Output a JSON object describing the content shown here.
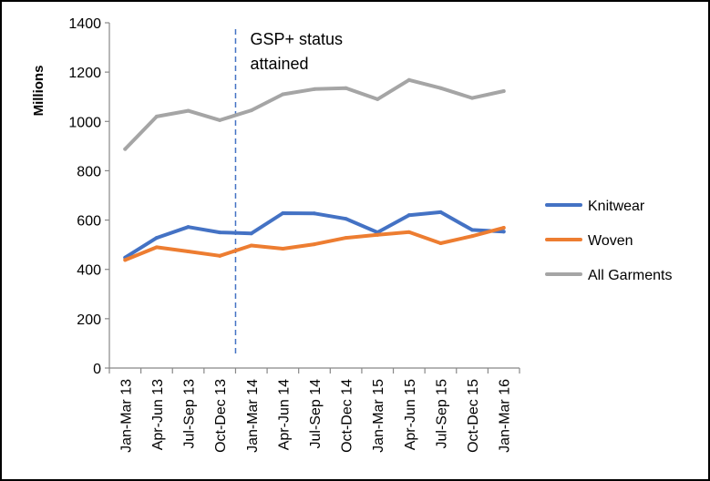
{
  "chart_data": {
    "type": "line",
    "title": "",
    "xlabel": "",
    "ylabel": "Millions",
    "ylim": [
      0,
      1400
    ],
    "yticks": [
      0,
      200,
      400,
      600,
      800,
      1000,
      1200,
      1400
    ],
    "categories": [
      "Jan-Mar 13",
      "Apr-Jun 13",
      "Jul-Sep 13",
      "Oct-Dec 13",
      "Jan-Mar 14",
      "Apr-Jun 14",
      "Jul-Sep 14",
      "Oct-Dec 14",
      "Jan-Mar 15",
      "Apr-Jun 15",
      "Jul-Sep 15",
      "Oct-Dec 15",
      "Jan-Mar 16"
    ],
    "series": [
      {
        "name": "Knitwear",
        "color": "#4472C4",
        "values": [
          448,
          528,
          572,
          550,
          546,
          628,
          627,
          605,
          550,
          620,
          632,
          560,
          553
        ]
      },
      {
        "name": "Woven",
        "color": "#ED7D31",
        "values": [
          438,
          490,
          473,
          455,
          497,
          484,
          502,
          528,
          540,
          551,
          506,
          535,
          569
        ]
      },
      {
        "name": "All Garments",
        "color": "#A5A5A5",
        "values": [
          888,
          1020,
          1043,
          1005,
          1045,
          1110,
          1131,
          1135,
          1090,
          1168,
          1135,
          1095,
          1123
        ]
      }
    ],
    "grid": false,
    "legend_position": "right",
    "annotation": {
      "lines": [
        "GSP+ status",
        "attained"
      ],
      "position_category_between": [
        3,
        4
      ],
      "line_style": "dashed",
      "line_color": "#4472C4"
    }
  }
}
